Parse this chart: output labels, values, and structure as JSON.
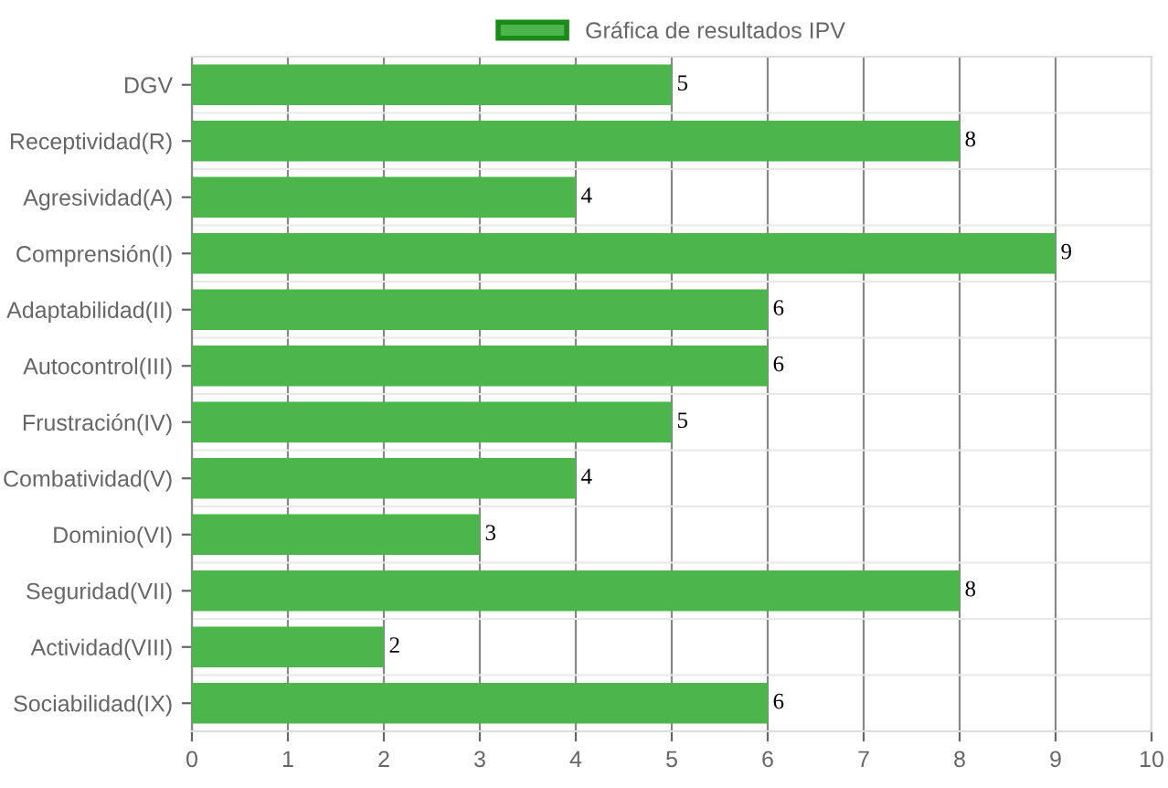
{
  "chart_data": {
    "type": "bar",
    "orientation": "horizontal",
    "categories": [
      "DGV",
      "Receptividad(R)",
      "Agresividad(A)",
      "Comprensión(I)",
      "Adaptabilidad(II)",
      "Autocontrol(III)",
      "Frustración(IV)",
      "Combatividad(V)",
      "Dominio(VI)",
      "Seguridad(VII)",
      "Actividad(VIII)",
      "Sociabilidad(IX)"
    ],
    "series": [
      {
        "name": "Gráfica de resultados IPV",
        "color": "#4cb54c",
        "values": [
          5,
          8,
          4,
          9,
          6,
          6,
          5,
          4,
          3,
          8,
          2,
          6
        ]
      }
    ],
    "xlim": [
      0,
      10
    ],
    "xticks": [
      0,
      1,
      2,
      3,
      4,
      5,
      6,
      7,
      8,
      9,
      10
    ],
    "grid": true,
    "legend": "top",
    "data_labels": true
  }
}
